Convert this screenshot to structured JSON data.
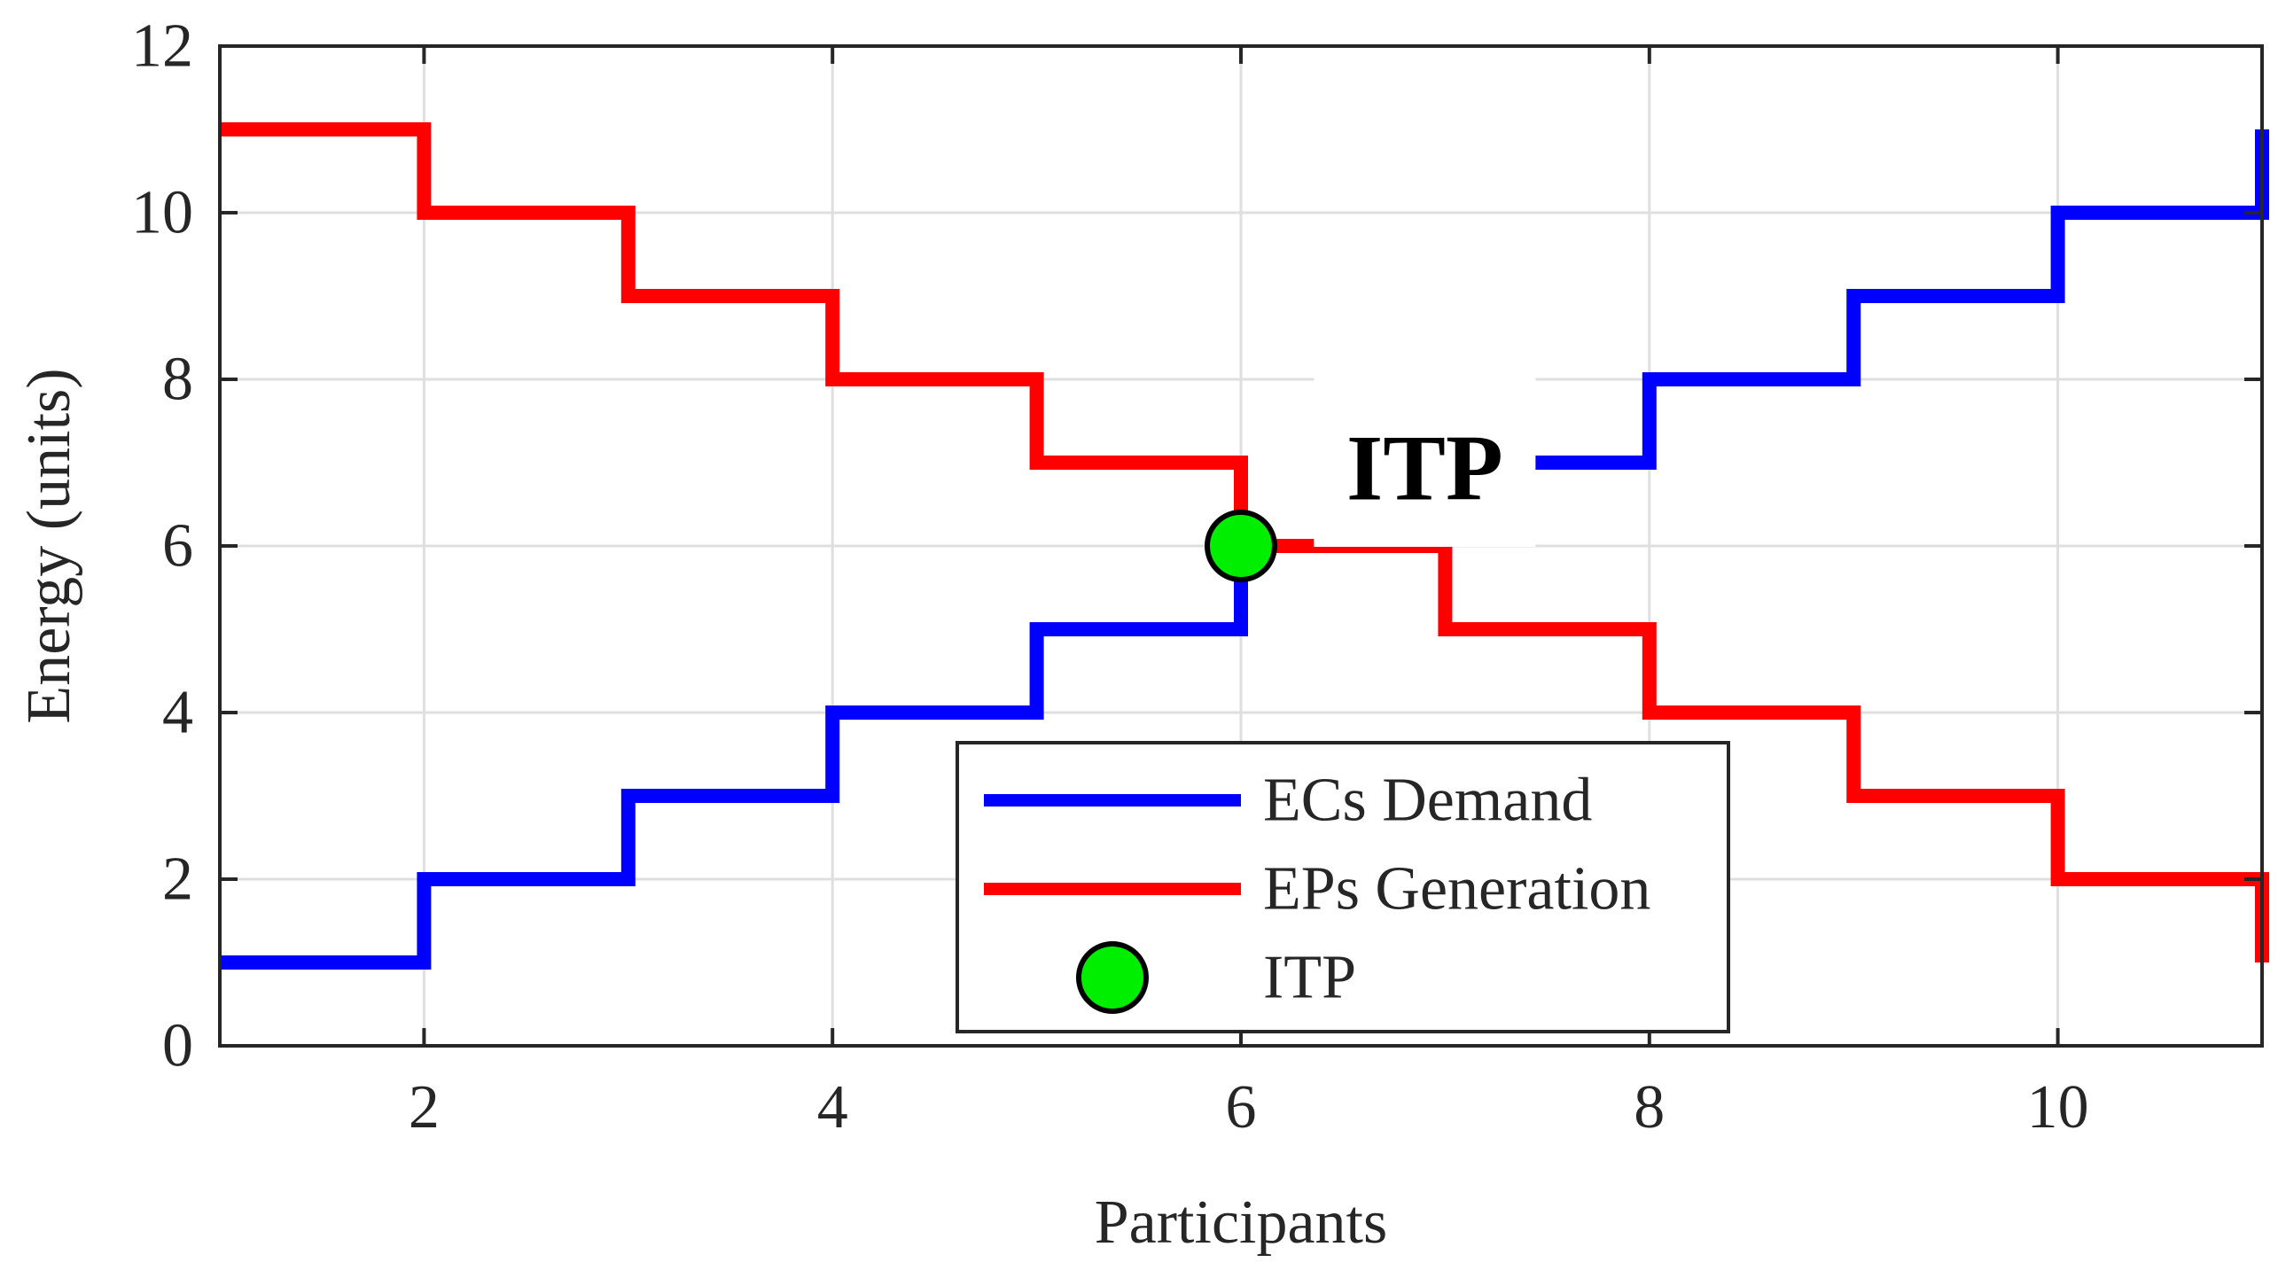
{
  "chart_data": {
    "type": "line",
    "line_shape": "step",
    "xlabel": "Participants",
    "ylabel": "Energy (units)",
    "xlim": [
      1,
      11
    ],
    "ylim": [
      0,
      12
    ],
    "xticks": [
      2,
      4,
      6,
      8,
      10
    ],
    "yticks": [
      0,
      2,
      4,
      6,
      8,
      10,
      12
    ],
    "grid": true,
    "legend_position": "bottom-center",
    "series": [
      {
        "name": "ECs Demand",
        "color": "#0000ff",
        "x": [
          1,
          2,
          3,
          4,
          5,
          6,
          7,
          8,
          9,
          10,
          11
        ],
        "y": [
          1,
          2,
          3,
          4,
          5,
          6,
          7,
          8,
          9,
          10,
          11
        ]
      },
      {
        "name": "EPs Generation",
        "color": "#ff0000",
        "x": [
          1,
          2,
          3,
          4,
          5,
          6,
          7,
          8,
          9,
          10,
          11
        ],
        "y": [
          11,
          10,
          9,
          8,
          7,
          6,
          5,
          4,
          3,
          2,
          1
        ]
      }
    ],
    "markers": [
      {
        "name": "ITP",
        "x": 6,
        "y": 6,
        "color": "#00ee00"
      }
    ],
    "annotations": [
      {
        "text": "ITP",
        "x": 6.9,
        "y": 7
      }
    ]
  }
}
